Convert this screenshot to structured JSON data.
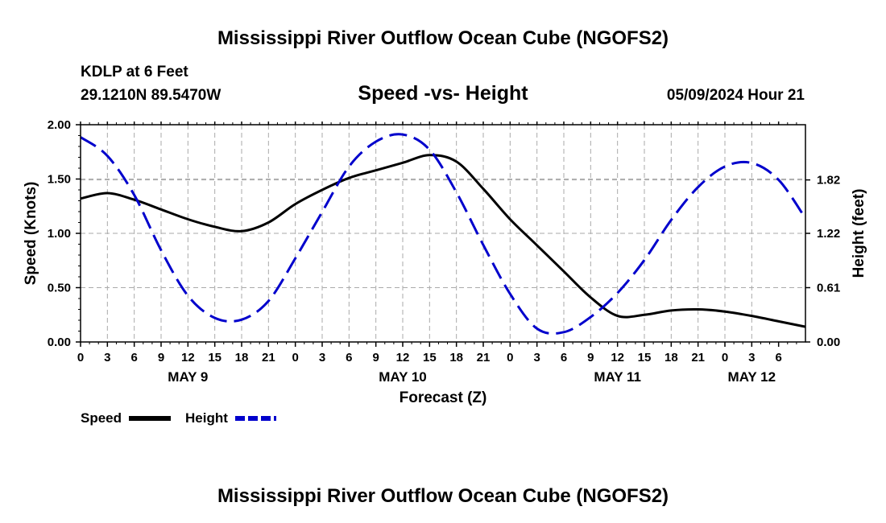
{
  "header": {
    "title": "Mississippi River Outflow Ocean Cube (NGOFS2)",
    "station": "KDLP at 6 Feet",
    "coords": "29.1210N  89.5470W",
    "subtitle": "Speed -vs- Height",
    "datetime": "05/09/2024 Hour 21"
  },
  "footer": {
    "title": "Mississippi River Outflow Ocean Cube (NGOFS2)"
  },
  "chart_data": {
    "type": "line",
    "title": "Speed -vs- Height",
    "xlabel": "Forecast (Z)",
    "ylabel": "Speed (Knots)",
    "y2label": "Height (feet)",
    "x_hours_range": [
      0,
      81
    ],
    "ylim": [
      0,
      2
    ],
    "y2lim": [
      0,
      2.44
    ],
    "x_tick_labels": [
      "0",
      "3",
      "6",
      "9",
      "12",
      "15",
      "18",
      "21",
      "0",
      "3",
      "6",
      "9",
      "12",
      "15",
      "18",
      "21",
      "0",
      "3",
      "6",
      "9",
      "12",
      "15",
      "18",
      "21",
      "0",
      "3",
      "6"
    ],
    "date_labels": [
      {
        "label": "MAY 9",
        "hour": 12
      },
      {
        "label": "MAY 10",
        "hour": 36
      },
      {
        "label": "MAY 11",
        "hour": 60
      },
      {
        "label": "MAY 12",
        "hour": 75
      }
    ],
    "y_tick_labels": [
      "0.00",
      "0.50",
      "1.00",
      "1.50",
      "2.00"
    ],
    "y_ticks": [
      0,
      0.5,
      1.0,
      1.5,
      2.0
    ],
    "y2_tick_labels": [
      "0.00",
      "0.61",
      "1.22",
      "1.82"
    ],
    "y2_ticks": [
      0,
      0.61,
      1.22,
      1.82
    ],
    "grid": true,
    "legend": [
      {
        "name": "Speed",
        "color": "#000000",
        "style": "solid"
      },
      {
        "name": "Height",
        "color": "#0000cc",
        "style": "dashed"
      }
    ],
    "series": [
      {
        "name": "Speed",
        "axis": "left",
        "color": "#000000",
        "x": [
          0,
          3,
          6,
          9,
          12,
          15,
          18,
          21,
          24,
          27,
          30,
          33,
          36,
          39,
          42,
          45,
          48,
          51,
          54,
          57,
          60,
          63,
          66,
          69,
          72,
          75,
          78,
          81
        ],
        "values": [
          1.32,
          1.37,
          1.31,
          1.22,
          1.13,
          1.06,
          1.02,
          1.1,
          1.27,
          1.4,
          1.51,
          1.58,
          1.65,
          1.72,
          1.66,
          1.41,
          1.13,
          0.89,
          0.65,
          0.41,
          0.24,
          0.25,
          0.29,
          0.3,
          0.28,
          0.24,
          0.19,
          0.14
        ]
      },
      {
        "name": "Height",
        "axis": "right",
        "color": "#0000cc",
        "x": [
          0,
          3,
          6,
          9,
          12,
          15,
          18,
          21,
          24,
          27,
          30,
          33,
          36,
          39,
          42,
          45,
          48,
          51,
          54,
          57,
          60,
          63,
          66,
          69,
          72,
          75,
          78,
          81
        ],
        "values": [
          2.3,
          2.09,
          1.65,
          1.03,
          0.52,
          0.27,
          0.25,
          0.46,
          0.94,
          1.46,
          1.97,
          2.25,
          2.33,
          2.16,
          1.68,
          1.09,
          0.54,
          0.15,
          0.11,
          0.28,
          0.55,
          0.92,
          1.37,
          1.74,
          1.97,
          2.01,
          1.82,
          1.39
        ]
      }
    ]
  }
}
